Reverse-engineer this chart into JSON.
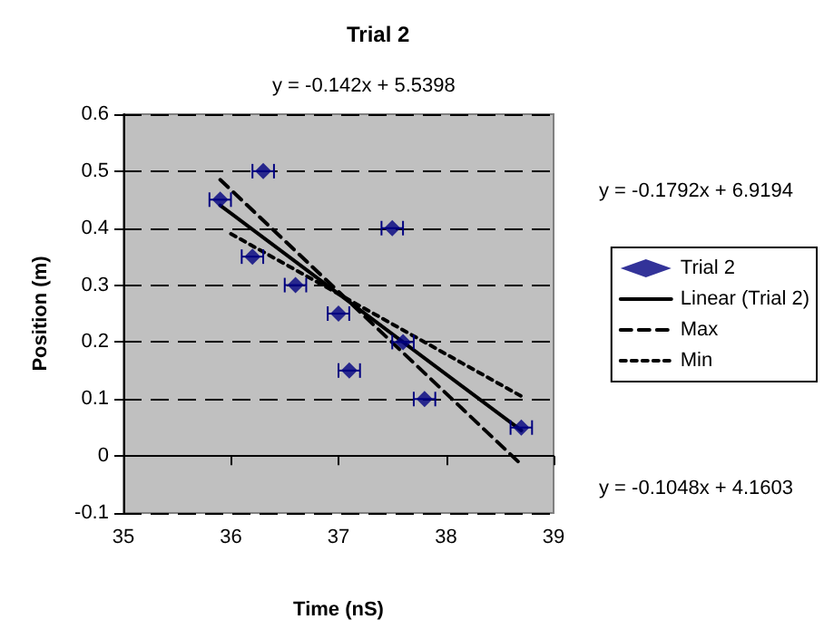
{
  "chart_data": {
    "type": "scatter",
    "title": "Trial 2",
    "xlabel": "Time (nS)",
    "ylabel": "Position (m)",
    "annotations": [
      "y = -0.142x + 5.5398",
      "y = -0.1792x + 6.9194",
      "y = -0.1048x + 4.1603"
    ],
    "xlim": [
      35,
      39
    ],
    "xticks": [
      35,
      36,
      37,
      38,
      39
    ],
    "ylim": [
      -0.1,
      0.6
    ],
    "yticks": [
      -0.1,
      0,
      0.1,
      0.2,
      0.3,
      0.4,
      0.5,
      0.6
    ],
    "grid": "y",
    "legend": "right",
    "series": [
      {
        "name": "Trial 2",
        "marker": "diamond",
        "color": "#000080",
        "x": [
          35.9,
          36.3,
          36.2,
          36.6,
          37.0,
          37.1,
          37.5,
          37.6,
          37.8,
          38.7
        ],
        "values": [
          0.45,
          0.5,
          0.35,
          0.3,
          0.25,
          0.15,
          0.4,
          0.2,
          0.1,
          0.05
        ],
        "xerrors": [
          0.1,
          0.1,
          0.1,
          0.1,
          0.1,
          0.1,
          0.1,
          0.1,
          0.1,
          0.1
        ]
      },
      {
        "name": "Linear (Trial 2)",
        "type": "line",
        "marker": "none",
        "line_style": "solid",
        "color": "#000000",
        "x": [
          35.9,
          38.7
        ],
        "values": [
          0.44,
          0.045
        ]
      },
      {
        "name": "Max",
        "type": "line",
        "marker": "none",
        "line_style": "dashed",
        "color": "#000000",
        "x": [
          35.9,
          38.7
        ],
        "values": [
          0.485,
          -0.015
        ]
      },
      {
        "name": "Min",
        "type": "line",
        "marker": "none",
        "line_style": "dotted",
        "color": "#000000",
        "x": [
          36.0,
          38.7
        ],
        "values": [
          0.39,
          0.105
        ]
      }
    ]
  }
}
